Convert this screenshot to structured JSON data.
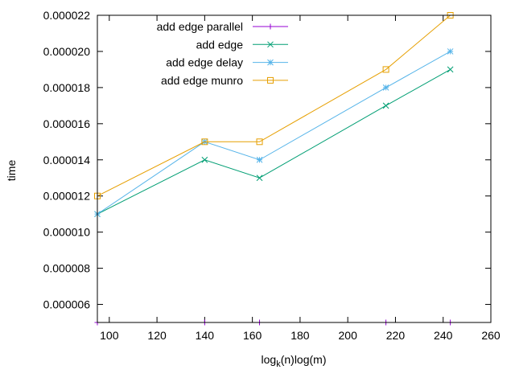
{
  "chart_data": {
    "type": "line",
    "title": "",
    "xlabel": {
      "prefix": "log",
      "subscript": "k",
      "suffix": "(n)log(m)"
    },
    "ylabel": "time",
    "xlim": [
      95,
      260
    ],
    "ylim": [
      5e-06,
      2.2e-05
    ],
    "xticks": [
      100,
      120,
      140,
      160,
      180,
      200,
      220,
      240,
      260
    ],
    "yticks": [
      6e-06,
      8e-06,
      1e-05,
      1.2e-05,
      1.4e-05,
      1.6e-05,
      1.8e-05,
      2e-05,
      2.2e-05
    ],
    "ytick_labels": [
      "0.000006",
      "0.000008",
      "0.000010",
      "0.000012",
      "0.000014",
      "0.000016",
      "0.000018",
      "0.000020",
      "0.000022"
    ],
    "grid": false,
    "legend_position": "top-left",
    "series": [
      {
        "name": "add edge parallel",
        "color": "#9400d3",
        "marker": "plus",
        "points": [
          [
            95,
            5e-06
          ],
          [
            140,
            5e-06
          ],
          [
            163,
            5e-06
          ],
          [
            216,
            5e-06
          ],
          [
            243,
            5e-06
          ]
        ]
      },
      {
        "name": "add edge",
        "color": "#009e73",
        "marker": "cross",
        "points": [
          [
            95,
            1.1e-05
          ],
          [
            140,
            1.4e-05
          ],
          [
            163,
            1.3e-05
          ],
          [
            216,
            1.7e-05
          ],
          [
            243,
            1.9e-05
          ]
        ]
      },
      {
        "name": "add edge delay",
        "color": "#56b4e9",
        "marker": "star",
        "points": [
          [
            95,
            1.1e-05
          ],
          [
            140,
            1.5e-05
          ],
          [
            163,
            1.4e-05
          ],
          [
            216,
            1.8e-05
          ],
          [
            243,
            2e-05
          ]
        ]
      },
      {
        "name": "add edge munro",
        "color": "#e69f00",
        "marker": "square",
        "points": [
          [
            95,
            1.2e-05
          ],
          [
            140,
            1.5e-05
          ],
          [
            163,
            1.5e-05
          ],
          [
            216,
            1.9e-05
          ],
          [
            243,
            2.2e-05
          ]
        ]
      }
    ]
  }
}
